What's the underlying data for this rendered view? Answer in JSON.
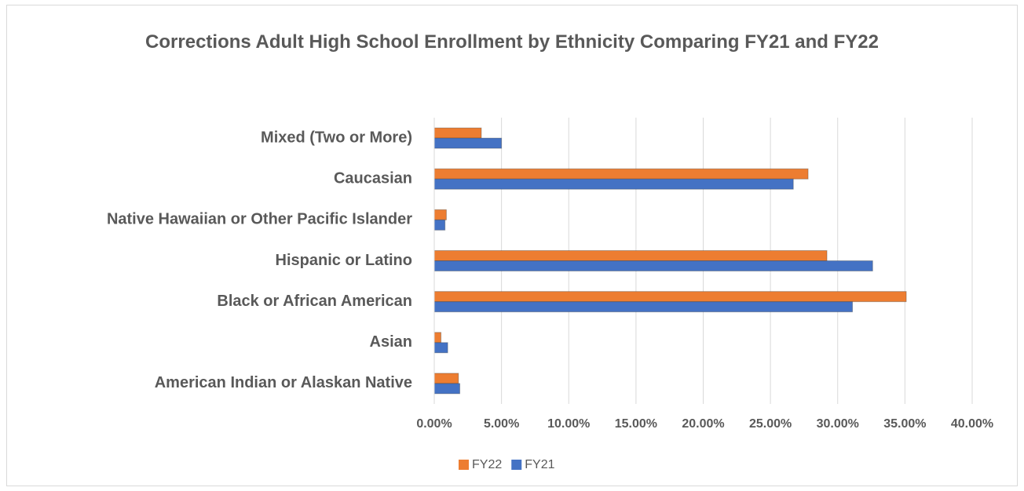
{
  "chart_data": {
    "type": "hbar",
    "title": "Corrections Adult High School Enrollment by Ethnicity Comparing FY21 and FY22",
    "categories": [
      "American Indian or Alaskan Native",
      "Asian",
      "Black or African American",
      "Hispanic or Latino",
      "Native Hawaiian or Other Pacific Islander",
      "Caucasian",
      "Mixed (Two or More)"
    ],
    "series": [
      {
        "name": "FY22",
        "color": "#ed7d31",
        "values": [
          1.8,
          0.5,
          35.1,
          29.2,
          0.9,
          27.8,
          3.5
        ]
      },
      {
        "name": "FY21",
        "color": "#4472c4",
        "values": [
          1.9,
          1.0,
          31.1,
          32.6,
          0.8,
          26.7,
          5.0
        ]
      }
    ],
    "xlim": [
      0,
      40
    ],
    "xticks": [
      {
        "value": 0,
        "label": "0.00%"
      },
      {
        "value": 5,
        "label": "5.00%"
      },
      {
        "value": 10,
        "label": "10.00%"
      },
      {
        "value": 15,
        "label": "15.00%"
      },
      {
        "value": 20,
        "label": "20.00%"
      },
      {
        "value": 25,
        "label": "25.00%"
      },
      {
        "value": 30,
        "label": "30.00%"
      },
      {
        "value": 35,
        "label": "35.00%"
      },
      {
        "value": 40,
        "label": "40.00%"
      }
    ],
    "grid": true,
    "legend": "bottom"
  }
}
